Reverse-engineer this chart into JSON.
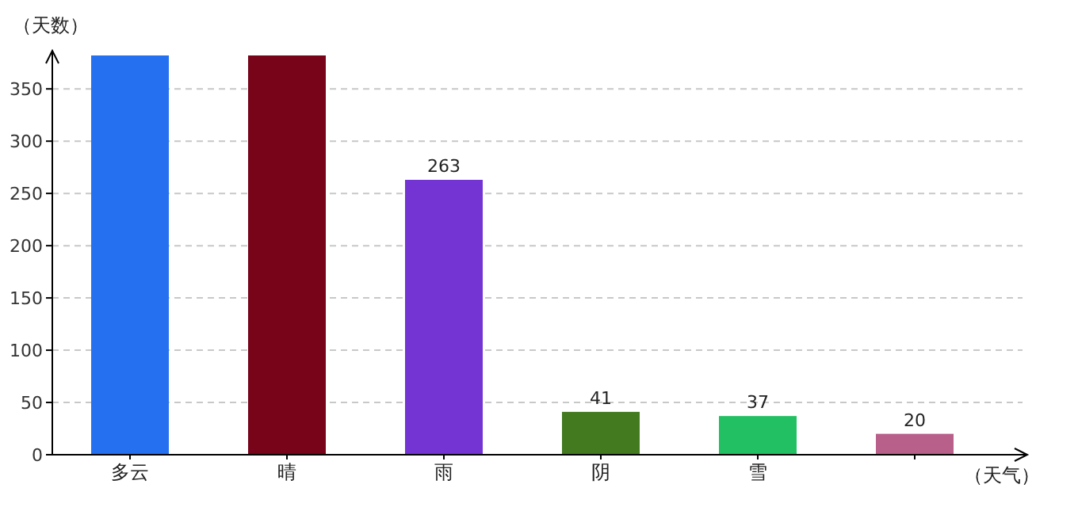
{
  "chart_data": {
    "type": "bar",
    "ylabel": "（天数）",
    "xlabel": "（天气）",
    "categories": [
      "多云",
      "晴",
      "雨",
      "阴",
      "雪",
      null
    ],
    "values": [
      382,
      382,
      263,
      41,
      37,
      20
    ],
    "value_labels": [
      null,
      null,
      "263",
      "41",
      "37",
      "20"
    ],
    "colors": [
      "#2470f0",
      "#78041a",
      "#7434d4",
      "#437a1f",
      "#22c062",
      "#b8608a"
    ],
    "ylim": [
      0,
      382
    ],
    "yticks": [
      0,
      50,
      100,
      150,
      200,
      250,
      300,
      350
    ],
    "grid": "y"
  }
}
